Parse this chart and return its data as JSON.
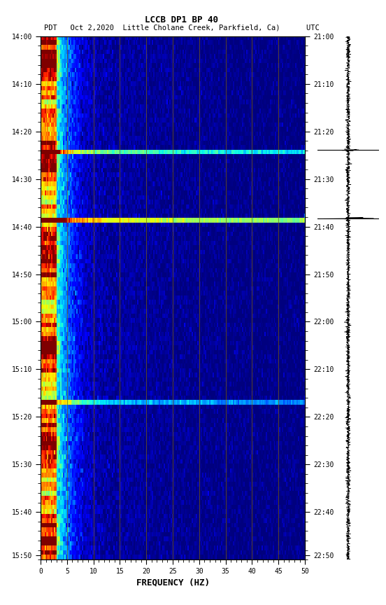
{
  "title_line1": "LCCB DP1 BP 40",
  "title_line2": "PDT   Oct 2,2020  Little Cholane Creek, Parkfield, Ca)      UTC",
  "xlabel": "FREQUENCY (HZ)",
  "freq_min": 0,
  "freq_max": 50,
  "pdt_yticks": [
    "14:00",
    "14:10",
    "14:20",
    "14:30",
    "14:40",
    "14:50",
    "15:00",
    "15:10",
    "15:20",
    "15:30",
    "15:40",
    "15:50"
  ],
  "utc_yticks": [
    "21:00",
    "21:10",
    "21:20",
    "21:30",
    "21:40",
    "21:50",
    "22:00",
    "22:10",
    "22:20",
    "22:30",
    "22:40",
    "22:50"
  ],
  "freq_xticks": [
    0,
    5,
    10,
    15,
    20,
    25,
    30,
    35,
    40,
    45,
    50
  ],
  "vertical_line_freqs": [
    5,
    10,
    15,
    20,
    25,
    30,
    35,
    40,
    45
  ],
  "event_times_min": [
    25,
    40,
    80
  ],
  "event_amplitudes": [
    3.5,
    5.0,
    2.5
  ],
  "n_time": 115,
  "n_freq": 200,
  "fig_bg": "#ffffff",
  "vline_color": "#806000",
  "fontsize_tick": 7,
  "fontsize_label": 9
}
